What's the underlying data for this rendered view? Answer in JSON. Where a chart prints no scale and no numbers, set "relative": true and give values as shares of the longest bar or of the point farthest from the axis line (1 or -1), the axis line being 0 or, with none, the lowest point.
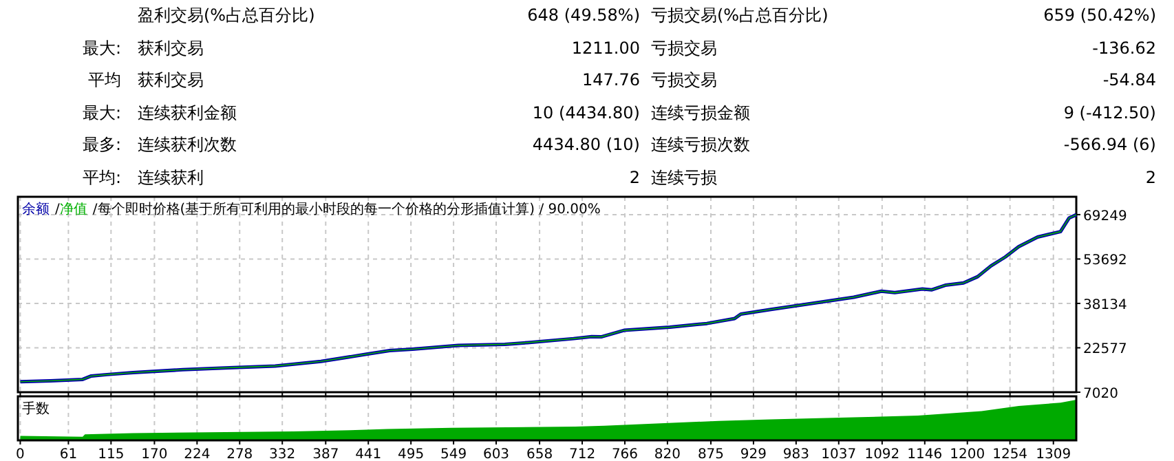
{
  "chart_data": [
    {
      "type": "other",
      "annotations": [
        "盈利交易(%占总百分比)",
        "648 (49.58%)",
        "亏损交易(%占总百分比)",
        "659 (50.42%)",
        "最大:",
        "获利交易",
        "1211.00",
        "亏损交易",
        "-136.62",
        "平均",
        "获利交易",
        "147.76",
        "亏损交易",
        "-54.84",
        "最大:",
        "连续获利金额",
        "10 (4434.80)",
        "连续亏损金额",
        "9 (-412.50)",
        "最多:",
        "连续获利次数",
        "4434.80 (10)",
        "连续亏损次数",
        "-566.94 (6)",
        "平均:",
        "连续获利",
        "2",
        "连续亏损",
        "2"
      ]
    },
    {
      "type": "line",
      "title": "每个即时价格(基于所有可利用的最小时段的每一个价格的分形插值计算) / 90.00%",
      "xlim": [
        -3,
        1338
      ],
      "xticks": [
        0,
        61,
        115,
        170,
        224,
        278,
        332,
        387,
        441,
        495,
        549,
        603,
        658,
        712,
        766,
        820,
        875,
        929,
        983,
        1037,
        1092,
        1146,
        1200,
        1254,
        1309
      ],
      "ylim": [
        7020,
        75500
      ],
      "yticks": [
        7020,
        22577,
        38134,
        53692,
        69249
      ],
      "grid": true,
      "tick_labels": "y",
      "annotations": [
        "/",
        "/"
      ],
      "series": [
        {
          "name": "余额",
          "color": "#0000a8",
          "x": [
            0,
            38,
            79,
            90,
            110,
            143,
            206,
            265,
            323,
            381,
            440,
            468,
            497,
            555,
            614,
            643,
            701,
            724,
            736,
            765,
            823,
            870,
            905,
            913,
            951,
            997,
            1056,
            1091,
            1108,
            1143,
            1155,
            1172,
            1195,
            1213,
            1230,
            1248,
            1265,
            1289,
            1318,
            1329,
            1338
          ],
          "values": [
            10700,
            11000,
            11500,
            12700,
            13200,
            13900,
            14900,
            15600,
            16200,
            17800,
            20400,
            21600,
            22100,
            23400,
            23800,
            24400,
            25800,
            26500,
            26400,
            28700,
            29800,
            31100,
            32800,
            34400,
            36000,
            37900,
            40300,
            42400,
            41900,
            43200,
            42900,
            44500,
            45300,
            47500,
            51300,
            54400,
            58000,
            61400,
            63300,
            68100,
            69200
          ]
        },
        {
          "name": "净值",
          "color": "#00b000",
          "x": [
            0,
            38,
            79,
            90,
            110,
            143,
            206,
            265,
            323,
            381,
            440,
            468,
            497,
            555,
            614,
            643,
            701,
            724,
            736,
            765,
            823,
            870,
            905,
            913,
            951,
            997,
            1056,
            1091,
            1108,
            1143,
            1155,
            1172,
            1195,
            1213,
            1230,
            1248,
            1265,
            1289,
            1318,
            1329,
            1338
          ],
          "values": [
            10700,
            11000,
            11500,
            12700,
            13200,
            13900,
            14900,
            15600,
            16200,
            17800,
            20400,
            21600,
            22100,
            23400,
            23800,
            24400,
            25800,
            26500,
            26400,
            28700,
            29800,
            31100,
            32800,
            34400,
            36000,
            37900,
            40300,
            42400,
            41900,
            43200,
            42900,
            44500,
            45300,
            47500,
            51300,
            54400,
            58000,
            61400,
            63300,
            68100,
            69200
          ]
        }
      ]
    },
    {
      "type": "area",
      "title": "手数",
      "relative": true,
      "grid": true,
      "tick_labels": "x",
      "xlim": [
        -3,
        1338
      ],
      "xticks": [
        0,
        61,
        115,
        170,
        224,
        278,
        332,
        387,
        441,
        495,
        549,
        603,
        658,
        712,
        766,
        820,
        875,
        929,
        983,
        1037,
        1092,
        1146,
        1200,
        1254,
        1309
      ],
      "x": [
        0,
        79,
        82,
        143,
        346,
        418,
        465,
        546,
        703,
        740,
        885,
        951,
        1056,
        1137,
        1218,
        1265,
        1318,
        1338
      ],
      "values": [
        0.11,
        0.09,
        0.15,
        0.18,
        0.22,
        0.25,
        0.28,
        0.31,
        0.34,
        0.36,
        0.48,
        0.52,
        0.57,
        0.61,
        0.72,
        0.85,
        0.93,
        1
      ],
      "color": "#00aa00"
    }
  ]
}
